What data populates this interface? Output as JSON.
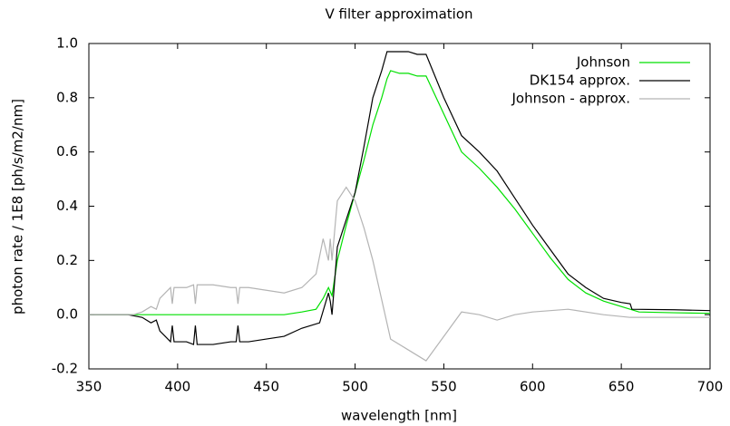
{
  "chart_data": {
    "type": "line",
    "title": "V filter approximation",
    "x_label": "wavelength [nm]",
    "y_label": "photon rate / 1E8 [ph/s/m2/nm]",
    "xlim": [
      350,
      700
    ],
    "xticks": [
      350,
      400,
      450,
      500,
      550,
      600,
      650,
      700
    ],
    "ylim": [
      -0.2,
      1.0
    ],
    "yticks": [
      -0.2,
      {
        "value": 0,
        "label": "0.0"
      },
      0.2,
      0.4,
      0.6,
      0.8,
      {
        "value": 1,
        "label": "1.0"
      }
    ],
    "legend": "top-right",
    "series": [
      {
        "name": "Johnson",
        "color": "#00e000",
        "x": [
          350,
          460,
          470,
          478,
          482,
          485,
          487,
          490,
          495,
          500,
          505,
          510,
          515,
          518,
          520,
          525,
          530,
          535,
          540,
          550,
          560,
          570,
          580,
          590,
          600,
          610,
          620,
          630,
          640,
          650,
          655,
          660,
          680,
          700
        ],
        "values": [
          0,
          0,
          0.01,
          0.02,
          0.06,
          0.1,
          0.07,
          0.2,
          0.33,
          0.45,
          0.57,
          0.7,
          0.8,
          0.87,
          0.9,
          0.89,
          0.89,
          0.88,
          0.88,
          0.74,
          0.6,
          0.54,
          0.47,
          0.39,
          0.3,
          0.21,
          0.13,
          0.08,
          0.05,
          0.03,
          0.02,
          0.01,
          0.007,
          0.005
        ]
      },
      {
        "name": "DK154 approx.",
        "color": "#000000",
        "x": [
          350,
          372,
          380,
          385,
          388,
          390,
          393,
          396,
          397,
          398,
          405,
          409,
          410,
          411,
          420,
          430,
          433,
          434,
          435,
          440,
          450,
          460,
          470,
          480,
          485,
          486,
          487,
          490,
          495,
          500,
          505,
          510,
          515,
          518,
          520,
          525,
          530,
          535,
          540,
          550,
          560,
          570,
          580,
          590,
          600,
          610,
          620,
          630,
          640,
          650,
          655,
          656,
          680,
          700
        ],
        "values": [
          0,
          0,
          -0.01,
          -0.03,
          -0.02,
          -0.06,
          -0.08,
          -0.1,
          -0.04,
          -0.1,
          -0.1,
          -0.11,
          -0.04,
          -0.11,
          -0.11,
          -0.1,
          -0.1,
          -0.04,
          -0.1,
          -0.1,
          -0.09,
          -0.08,
          -0.05,
          -0.03,
          0.08,
          0.05,
          0.0,
          0.25,
          0.35,
          0.45,
          0.62,
          0.8,
          0.9,
          0.97,
          0.97,
          0.97,
          0.97,
          0.96,
          0.96,
          0.8,
          0.66,
          0.6,
          0.53,
          0.43,
          0.33,
          0.24,
          0.15,
          0.1,
          0.06,
          0.045,
          0.04,
          0.02,
          0.018,
          0.015
        ]
      },
      {
        "name": "Johnson - approx.",
        "color": "#b4b4b4",
        "x": [
          350,
          375,
          380,
          385,
          388,
          390,
          393,
          396,
          397,
          398,
          405,
          409,
          410,
          411,
          420,
          430,
          433,
          434,
          435,
          440,
          450,
          460,
          470,
          478,
          482,
          485,
          486,
          487,
          490,
          495,
          500,
          505,
          510,
          520,
          530,
          540,
          550,
          560,
          570,
          580,
          590,
          600,
          620,
          640,
          655,
          680,
          700
        ],
        "values": [
          0,
          0,
          0.01,
          0.03,
          0.02,
          0.06,
          0.08,
          0.1,
          0.04,
          0.1,
          0.1,
          0.11,
          0.04,
          0.11,
          0.11,
          0.1,
          0.1,
          0.04,
          0.1,
          0.1,
          0.09,
          0.08,
          0.1,
          0.15,
          0.28,
          0.2,
          0.28,
          0.2,
          0.42,
          0.47,
          0.42,
          0.32,
          0.2,
          -0.09,
          -0.13,
          -0.17,
          -0.08,
          0.01,
          0.0,
          -0.02,
          0.0,
          0.01,
          0.02,
          0.0,
          -0.01,
          -0.01,
          -0.01
        ]
      }
    ]
  }
}
